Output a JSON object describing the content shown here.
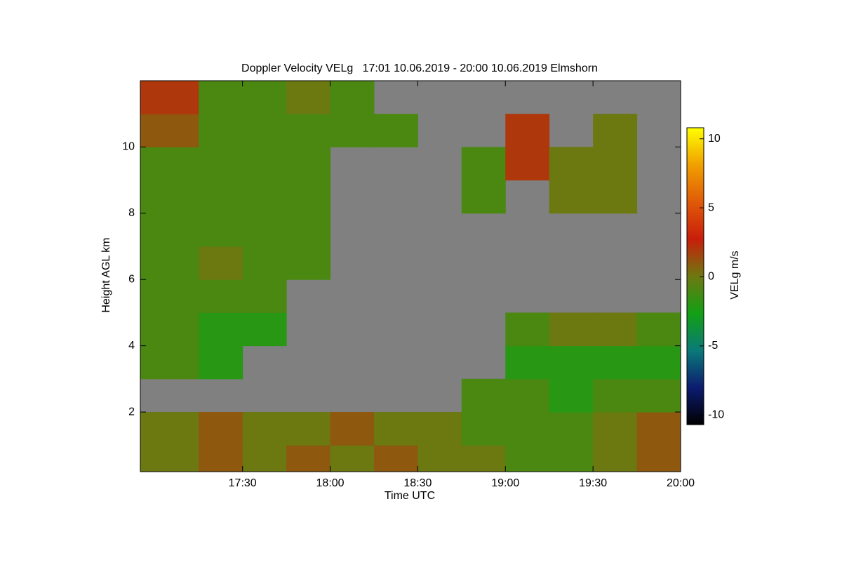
{
  "chart_data": {
    "type": "heatmap",
    "title": "Doppler Velocity VELg   17:01 10.06.2019 - 20:00 10.06.2019 Elmshorn",
    "x_label": "Time UTC",
    "y_label": "Height AGL km",
    "colorbar_label": "VELg m/s",
    "x_bins": [
      1015,
      1035,
      1050,
      1065,
      1080,
      1095,
      1110,
      1125,
      1140,
      1155,
      1170,
      1185,
      1200
    ],
    "y_bins": [
      0.2,
      1,
      2,
      3,
      4,
      5,
      6,
      7,
      8,
      9,
      10,
      11,
      12
    ],
    "values": [
      [
        0,
        1,
        0,
        1,
        0,
        1,
        0,
        0,
        -1,
        -1,
        0,
        1
      ],
      [
        0,
        1,
        0,
        0,
        1,
        0,
        0,
        -1,
        -1,
        -1,
        0,
        1
      ],
      [
        null,
        null,
        null,
        null,
        null,
        null,
        null,
        -1,
        -1,
        -2,
        -1,
        -1
      ],
      [
        -1,
        -2,
        null,
        null,
        null,
        null,
        null,
        null,
        -2,
        -2,
        -2,
        -2
      ],
      [
        -1,
        -2,
        -2,
        null,
        null,
        null,
        null,
        null,
        -1,
        0,
        0,
        -1
      ],
      [
        -1,
        -1,
        -1,
        null,
        null,
        null,
        null,
        null,
        null,
        null,
        null,
        null
      ],
      [
        -1,
        0,
        -1,
        -1,
        null,
        null,
        null,
        null,
        null,
        null,
        null,
        null
      ],
      [
        -1,
        -1,
        -1,
        -1,
        null,
        null,
        null,
        null,
        null,
        null,
        null,
        null
      ],
      [
        -1,
        -1,
        -1,
        -1,
        null,
        null,
        null,
        -1,
        null,
        0,
        0,
        null
      ],
      [
        -1,
        -1,
        -1,
        -1,
        null,
        null,
        null,
        -1,
        2,
        0,
        0,
        null
      ],
      [
        1,
        -1,
        -1,
        -1,
        -1,
        -1,
        null,
        null,
        2,
        null,
        0,
        null
      ],
      [
        2,
        -1,
        -1,
        0,
        -1,
        null,
        null,
        null,
        null,
        null,
        null,
        null
      ]
    ],
    "xlim": [
      1015,
      1200
    ],
    "xticks": [
      {
        "value": 1050,
        "label": "17:30"
      },
      {
        "value": 1080,
        "label": "18:00"
      },
      {
        "value": 1110,
        "label": "18:30"
      },
      {
        "value": 1140,
        "label": "19:00"
      },
      {
        "value": 1170,
        "label": "19:30"
      },
      {
        "value": 1200,
        "label": "20:00"
      }
    ],
    "ylim": [
      0.2,
      12
    ],
    "yticks": [
      2,
      4,
      6,
      8,
      10
    ],
    "zlim": [
      -10.7,
      10.8
    ],
    "zticks": [
      -10,
      -5,
      0,
      5,
      10
    ],
    "colormap": [
      "#000000",
      "#0c1c70",
      "#0a7a78",
      "#12a014",
      "#6e7810",
      "#c81e0a",
      "#e05a08",
      "#f0a000",
      "#ffff00"
    ],
    "missing_color": "#808080"
  }
}
